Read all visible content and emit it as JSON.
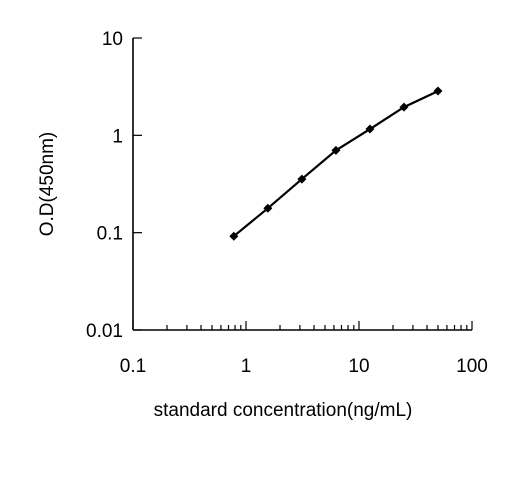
{
  "chart_data": {
    "type": "line",
    "xlabel": "standard concentration(ng/mL)",
    "ylabel": "O.D(450nm)",
    "x_scale": "log",
    "y_scale": "log",
    "xlim": [
      0.1,
      100
    ],
    "ylim": [
      0.01,
      10
    ],
    "x_ticks": [
      "0.1",
      "1",
      "10",
      "100"
    ],
    "y_ticks": [
      "0.01",
      "0.1",
      "1",
      "10"
    ],
    "grid": false,
    "series": [
      {
        "color": "#000000",
        "marker": "diamond",
        "x": [
          0.78,
          1.56,
          3.125,
          6.25,
          12.5,
          25,
          50
        ],
        "y": [
          0.092,
          0.178,
          0.355,
          0.7,
          1.16,
          1.95,
          2.85
        ]
      }
    ]
  }
}
